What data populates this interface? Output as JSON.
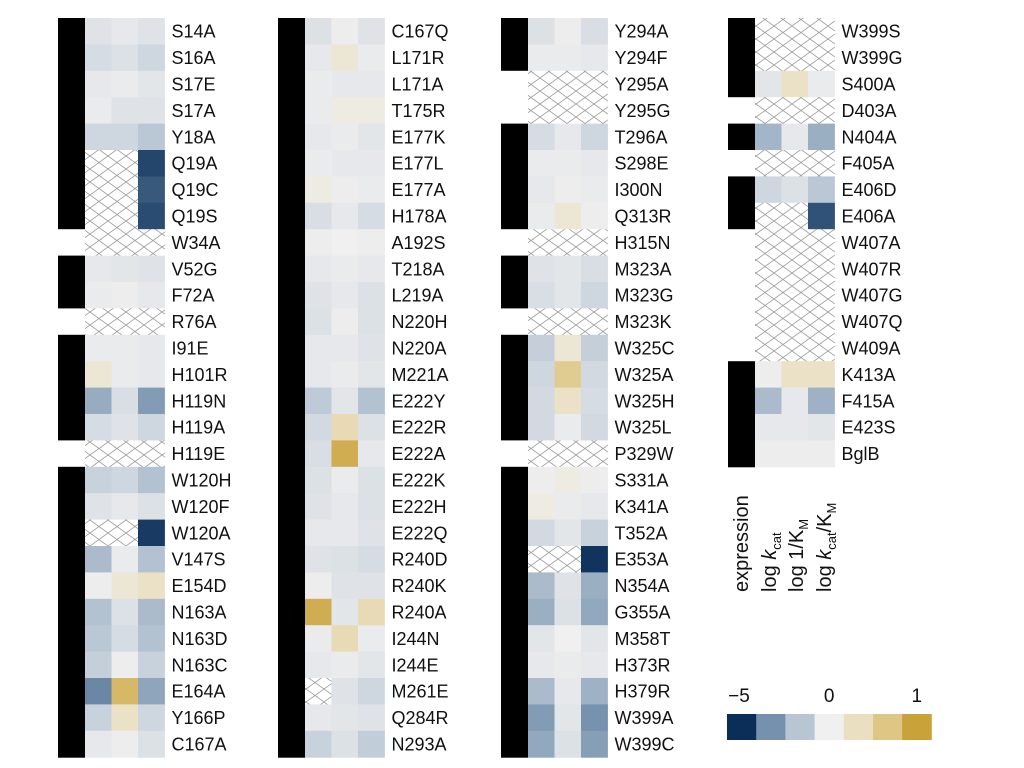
{
  "chart_data": {
    "type": "heatmap",
    "title": "",
    "column_labels": [
      "expression",
      "log k_cat",
      "log 1/K_M",
      "log k_cat/K_M"
    ],
    "column_labels_display": {
      "expression": "expression",
      "log_kcat": {
        "prefix": "log ",
        "italic": "k",
        "sub": "cat"
      },
      "log_inv_km": {
        "prefix": "log 1/K",
        "sub": "M"
      },
      "log_kcat_km": {
        "prefix": "log ",
        "italic": "k",
        "sub1": "cat",
        "mid": "/K",
        "sub2": "M"
      }
    },
    "value_scale": {
      "min": -5,
      "max": 1,
      "center": 0
    },
    "colorbar": {
      "tick_labels": [
        "−5",
        "0",
        "1"
      ],
      "colors": [
        "#0b2e59",
        "#7591ad",
        "#b8c6d4",
        "#f0f0f0",
        "#eadfc1",
        "#dec784",
        "#c9a23a"
      ]
    },
    "colors": {
      "expressed": "#000000",
      "not_expressed": "#ffffff",
      "no_data": "#ffffff",
      "no_data_pattern": "#9a9a9a"
    },
    "missing_marker": "null = no data (cross-hatched)",
    "groups": [
      {
        "rows": [
          {
            "label": "S14A",
            "expression": 1,
            "values": [
              -0.5,
              -0.3,
              -0.5
            ]
          },
          {
            "label": "S16A",
            "expression": 1,
            "values": [
              -0.8,
              -0.6,
              -1.0
            ]
          },
          {
            "label": "S17E",
            "expression": 1,
            "values": [
              -0.3,
              -0.2,
              -0.4
            ]
          },
          {
            "label": "S17A",
            "expression": 1,
            "values": [
              -0.2,
              -0.5,
              -0.5
            ]
          },
          {
            "label": "Y18A",
            "expression": 1,
            "values": [
              -1.0,
              -1.0,
              -1.6
            ]
          },
          {
            "label": "Q19A",
            "expression": 1,
            "values": [
              null,
              null,
              -4.6
            ]
          },
          {
            "label": "Q19C",
            "expression": 1,
            "values": [
              null,
              null,
              -4.3
            ]
          },
          {
            "label": "Q19S",
            "expression": 1,
            "values": [
              null,
              null,
              -4.5
            ]
          },
          {
            "label": "W34A",
            "expression": 0,
            "values": [
              null,
              null,
              null
            ]
          },
          {
            "label": "V52G",
            "expression": 1,
            "values": [
              -0.3,
              -0.4,
              -0.5
            ]
          },
          {
            "label": "F72A",
            "expression": 1,
            "values": [
              -0.2,
              -0.1,
              -0.3
            ]
          },
          {
            "label": "R76A",
            "expression": 0,
            "values": [
              null,
              null,
              null
            ]
          },
          {
            "label": "I91E",
            "expression": 1,
            "values": [
              -0.2,
              -0.2,
              -0.3
            ]
          },
          {
            "label": "H101R",
            "expression": 1,
            "values": [
              0.2,
              -0.2,
              -0.3
            ]
          },
          {
            "label": "H119N",
            "expression": 1,
            "values": [
              -2.5,
              -0.7,
              -3.0
            ]
          },
          {
            "label": "H119A",
            "expression": 1,
            "values": [
              -0.8,
              -0.5,
              -1.0
            ]
          },
          {
            "label": "H119E",
            "expression": 0,
            "values": [
              null,
              null,
              null
            ]
          },
          {
            "label": "W120H",
            "expression": 1,
            "values": [
              -1.2,
              -1.0,
              -1.8
            ]
          },
          {
            "label": "W120F",
            "expression": 1,
            "values": [
              -0.5,
              -0.3,
              -0.6
            ]
          },
          {
            "label": "W120A",
            "expression": 1,
            "values": [
              null,
              null,
              -4.8
            ]
          },
          {
            "label": "V147S",
            "expression": 1,
            "values": [
              -2.0,
              -0.2,
              -1.8
            ]
          },
          {
            "label": "E154D",
            "expression": 1,
            "values": [
              -0.1,
              0.2,
              0.3
            ]
          },
          {
            "label": "N163A",
            "expression": 1,
            "values": [
              -1.8,
              -0.6,
              -2.0
            ]
          },
          {
            "label": "N163D",
            "expression": 1,
            "values": [
              -1.6,
              -0.8,
              -1.8
            ]
          },
          {
            "label": "N163C",
            "expression": 1,
            "values": [
              -1.3,
              -0.1,
              -1.2
            ]
          },
          {
            "label": "E164A",
            "expression": 1,
            "values": [
              -3.5,
              0.8,
              -2.7
            ]
          },
          {
            "label": "Y166P",
            "expression": 1,
            "values": [
              -1.2,
              0.3,
              -1.0
            ]
          },
          {
            "label": "C167A",
            "expression": 1,
            "values": [
              -0.3,
              -0.1,
              -0.6
            ]
          }
        ]
      },
      {
        "rows": [
          {
            "label": "C167Q",
            "expression": 1,
            "values": [
              -0.6,
              -0.1,
              -0.5
            ]
          },
          {
            "label": "L171R",
            "expression": 1,
            "values": [
              -0.3,
              0.2,
              -0.2
            ]
          },
          {
            "label": "L171A",
            "expression": 1,
            "values": [
              -0.2,
              -0.3,
              -0.3
            ]
          },
          {
            "label": "T175R",
            "expression": 1,
            "values": [
              -0.2,
              0.1,
              0.1
            ]
          },
          {
            "label": "E177K",
            "expression": 1,
            "values": [
              -0.3,
              -0.2,
              -0.4
            ]
          },
          {
            "label": "E177L",
            "expression": 1,
            "values": [
              -0.2,
              -0.3,
              -0.3
            ]
          },
          {
            "label": "E177A",
            "expression": 1,
            "values": [
              0.1,
              -0.1,
              -0.2
            ]
          },
          {
            "label": "H178A",
            "expression": 1,
            "values": [
              -0.7,
              -0.3,
              -0.8
            ]
          },
          {
            "label": "A192S",
            "expression": 1,
            "values": [
              -0.1,
              0.0,
              -0.1
            ]
          },
          {
            "label": "T218A",
            "expression": 1,
            "values": [
              -0.3,
              -0.2,
              -0.3
            ]
          },
          {
            "label": "L219A",
            "expression": 1,
            "values": [
              -0.5,
              -0.3,
              -0.6
            ]
          },
          {
            "label": "N220H",
            "expression": 1,
            "values": [
              -0.6,
              -0.1,
              -0.6
            ]
          },
          {
            "label": "N220A",
            "expression": 1,
            "values": [
              -0.3,
              -0.3,
              -0.5
            ]
          },
          {
            "label": "M221A",
            "expression": 1,
            "values": [
              -0.3,
              -0.2,
              -0.4
            ]
          },
          {
            "label": "E222Y",
            "expression": 1,
            "values": [
              -1.5,
              -0.4,
              -1.8
            ]
          },
          {
            "label": "E222R",
            "expression": 1,
            "values": [
              -0.9,
              0.4,
              -0.6
            ]
          },
          {
            "label": "E222A",
            "expression": 1,
            "values": [
              -0.7,
              0.9,
              -0.3
            ]
          },
          {
            "label": "E222K",
            "expression": 1,
            "values": [
              -0.6,
              -0.2,
              -0.6
            ]
          },
          {
            "label": "E222H",
            "expression": 1,
            "values": [
              -0.5,
              -0.3,
              -0.6
            ]
          },
          {
            "label": "E222Q",
            "expression": 1,
            "values": [
              -0.3,
              -0.3,
              -0.5
            ]
          },
          {
            "label": "R240D",
            "expression": 1,
            "values": [
              -0.5,
              -0.6,
              -0.8
            ]
          },
          {
            "label": "R240K",
            "expression": 1,
            "values": [
              -0.1,
              -0.5,
              -0.5
            ]
          },
          {
            "label": "R240A",
            "expression": 1,
            "values": [
              0.9,
              -0.4,
              0.4
            ]
          },
          {
            "label": "I244N",
            "expression": 1,
            "values": [
              -0.2,
              0.4,
              -0.2
            ]
          },
          {
            "label": "I244E",
            "expression": 1,
            "values": [
              -0.3,
              -0.2,
              -0.4
            ]
          },
          {
            "label": "M261E",
            "expression": 1,
            "values": [
              null,
              -0.5,
              -1.0
            ]
          },
          {
            "label": "Q284R",
            "expression": 1,
            "values": [
              -0.3,
              -0.4,
              -0.5
            ]
          },
          {
            "label": "N293A",
            "expression": 1,
            "values": [
              -1.2,
              -0.6,
              -1.4
            ]
          }
        ]
      },
      {
        "rows": [
          {
            "label": "Y294A",
            "expression": 1,
            "values": [
              -0.6,
              -0.1,
              -0.7
            ]
          },
          {
            "label": "Y294F",
            "expression": 1,
            "values": [
              -0.2,
              -0.2,
              -0.3
            ]
          },
          {
            "label": "Y295A",
            "expression": 0,
            "values": [
              null,
              null,
              null
            ]
          },
          {
            "label": "Y295G",
            "expression": 0,
            "values": [
              null,
              null,
              null
            ]
          },
          {
            "label": "T296A",
            "expression": 1,
            "values": [
              -0.8,
              -0.3,
              -1.0
            ]
          },
          {
            "label": "S298E",
            "expression": 1,
            "values": [
              -0.2,
              -0.2,
              -0.3
            ]
          },
          {
            "label": "I300N",
            "expression": 1,
            "values": [
              -0.3,
              -0.1,
              -0.2
            ]
          },
          {
            "label": "Q313R",
            "expression": 1,
            "values": [
              -0.2,
              0.2,
              -0.1
            ]
          },
          {
            "label": "H315N",
            "expression": 0,
            "values": [
              null,
              null,
              null
            ]
          },
          {
            "label": "M323A",
            "expression": 1,
            "values": [
              -0.5,
              -0.4,
              -0.7
            ]
          },
          {
            "label": "M323G",
            "expression": 1,
            "values": [
              -0.7,
              -0.4,
              -1.0
            ]
          },
          {
            "label": "M323K",
            "expression": 0,
            "values": [
              null,
              null,
              null
            ]
          },
          {
            "label": "W325C",
            "expression": 1,
            "values": [
              -1.3,
              0.2,
              -1.3
            ]
          },
          {
            "label": "W325A",
            "expression": 1,
            "values": [
              -1.0,
              0.6,
              -0.9
            ]
          },
          {
            "label": "W325H",
            "expression": 1,
            "values": [
              -0.9,
              0.3,
              -0.8
            ]
          },
          {
            "label": "W325L",
            "expression": 1,
            "values": [
              -0.9,
              -0.2,
              -0.9
            ]
          },
          {
            "label": "P329W",
            "expression": 0,
            "values": [
              null,
              null,
              null
            ]
          },
          {
            "label": "S331A",
            "expression": 1,
            "values": [
              -0.1,
              0.1,
              -0.1
            ]
          },
          {
            "label": "K341A",
            "expression": 1,
            "values": [
              0.1,
              -0.2,
              -0.3
            ]
          },
          {
            "label": "T352A",
            "expression": 1,
            "values": [
              -0.9,
              -0.4,
              -1.2
            ]
          },
          {
            "label": "E353A",
            "expression": 1,
            "values": [
              null,
              null,
              -4.9
            ]
          },
          {
            "label": "N354A",
            "expression": 1,
            "values": [
              -2.0,
              -0.5,
              -2.4
            ]
          },
          {
            "label": "G355A",
            "expression": 1,
            "values": [
              -2.4,
              -0.6,
              -2.6
            ]
          },
          {
            "label": "M358T",
            "expression": 1,
            "values": [
              -0.4,
              0.0,
              -0.4
            ]
          },
          {
            "label": "H373R",
            "expression": 1,
            "values": [
              -0.3,
              -0.2,
              -0.3
            ]
          },
          {
            "label": "H379R",
            "expression": 1,
            "values": [
              -2.0,
              -0.3,
              -2.3
            ]
          },
          {
            "label": "W399A",
            "expression": 1,
            "values": [
              -3.0,
              -0.4,
              -3.3
            ]
          },
          {
            "label": "W399C",
            "expression": 1,
            "values": [
              -2.6,
              -0.6,
              -2.9
            ]
          }
        ]
      },
      {
        "rows": [
          {
            "label": "W399S",
            "expression": 1,
            "values": [
              null,
              null,
              null
            ]
          },
          {
            "label": "W399G",
            "expression": 1,
            "values": [
              null,
              null,
              null
            ]
          },
          {
            "label": "S400A",
            "expression": 1,
            "values": [
              -0.4,
              0.3,
              -0.2
            ]
          },
          {
            "label": "D403A",
            "expression": 0,
            "values": [
              null,
              null,
              null
            ]
          },
          {
            "label": "N404A",
            "expression": 1,
            "values": [
              -2.2,
              -0.3,
              -2.4
            ]
          },
          {
            "label": "F405A",
            "expression": 0,
            "values": [
              null,
              null,
              null
            ]
          },
          {
            "label": "E406D",
            "expression": 1,
            "values": [
              -1.0,
              -0.6,
              -1.6
            ]
          },
          {
            "label": "E406A",
            "expression": 1,
            "values": [
              null,
              null,
              -4.4
            ]
          },
          {
            "label": "W407A",
            "expression": 0,
            "values": [
              null,
              null,
              null
            ]
          },
          {
            "label": "W407R",
            "expression": 0,
            "values": [
              null,
              null,
              null
            ]
          },
          {
            "label": "W407G",
            "expression": 0,
            "values": [
              null,
              null,
              null
            ]
          },
          {
            "label": "W407Q",
            "expression": 0,
            "values": [
              null,
              null,
              null
            ]
          },
          {
            "label": "W409A",
            "expression": 0,
            "values": [
              null,
              null,
              null
            ]
          },
          {
            "label": "K413A",
            "expression": 1,
            "values": [
              -0.1,
              0.3,
              0.3
            ]
          },
          {
            "label": "F415A",
            "expression": 1,
            "values": [
              -2.0,
              -0.3,
              -2.3
            ]
          },
          {
            "label": "E423S",
            "expression": 1,
            "values": [
              -0.3,
              -0.3,
              -0.4
            ]
          },
          {
            "label": "BglB",
            "expression": 1,
            "values": [
              -0.1,
              -0.1,
              -0.1
            ]
          }
        ]
      }
    ]
  }
}
